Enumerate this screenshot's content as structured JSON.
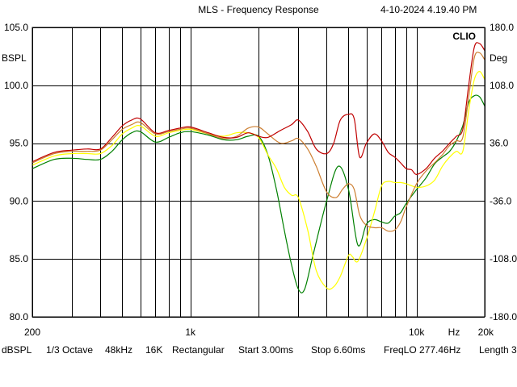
{
  "header": {
    "title": "MLS - Frequency Response",
    "timestamp": "4-10-2024 4.19.40 PM"
  },
  "chart_data": {
    "type": "line",
    "title": "MLS - Frequency Response",
    "brand": "CLIO",
    "x_scale": "log",
    "xlim": [
      200,
      20000
    ],
    "x_tick_values": [
      200,
      1000,
      10000,
      20000
    ],
    "x_tick_labels": [
      "200",
      "1k",
      "10k",
      "20k"
    ],
    "x_unit_label": "Hz",
    "x_gridlines": [
      200,
      300,
      400,
      500,
      600,
      700,
      800,
      900,
      1000,
      2000,
      3000,
      4000,
      5000,
      6000,
      7000,
      8000,
      9000,
      10000,
      20000
    ],
    "ylim": [
      80,
      105
    ],
    "y_tick_values": [
      80,
      85,
      90,
      95,
      100,
      105
    ],
    "y_tick_labels": [
      "80.0",
      "85.0",
      "90.0",
      "95.0",
      "100.0",
      "105.0"
    ],
    "ylabel": "BSPL",
    "y2lim": [
      -180,
      180
    ],
    "y2_tick_values": [
      -180,
      -108,
      -36,
      36,
      108,
      180
    ],
    "y2_tick_labels": [
      "-180.0",
      "-108.0",
      "-36.0",
      "36.0",
      "108.0",
      "180.0"
    ],
    "y2label": "Deg",
    "grid": true,
    "series": [
      {
        "color": "#008000",
        "x": [
          200,
          250,
          300,
          350,
          400,
          450,
          500,
          550,
          600,
          700,
          800,
          900,
          1000,
          1200,
          1400,
          1600,
          1800,
          2000,
          2200,
          2400,
          2600,
          2800,
          3000,
          3200,
          3500,
          4000,
          4500,
          5000,
          5500,
          6000,
          6500,
          7000,
          7500,
          8000,
          8500,
          9000,
          10000,
          11000,
          12000,
          13000,
          14000,
          15000,
          16000,
          17000,
          18000,
          19000,
          20000
        ],
        "y": [
          92.8,
          93.6,
          93.7,
          93.6,
          93.6,
          94.3,
          95.3,
          95.9,
          96.0,
          95.1,
          95.5,
          95.9,
          96.0,
          95.7,
          95.3,
          95.3,
          95.6,
          95.6,
          94.0,
          91.0,
          87.5,
          84.5,
          82.4,
          82.4,
          85.5,
          90.0,
          93.0,
          91.0,
          86.2,
          88.0,
          88.4,
          88.2,
          88.1,
          88.7,
          89.0,
          89.8,
          91.0,
          92.0,
          93.2,
          93.8,
          94.3,
          95.2,
          96.5,
          98.5,
          99.1,
          99.0,
          98.2
        ]
      },
      {
        "color": "#ffff00",
        "x": [
          200,
          250,
          300,
          350,
          400,
          450,
          500,
          550,
          600,
          700,
          800,
          900,
          1000,
          1200,
          1400,
          1600,
          1800,
          2000,
          2200,
          2400,
          2600,
          2800,
          3000,
          3300,
          3600,
          4000,
          4300,
          4600,
          5000,
          5200,
          5500,
          6000,
          6500,
          7000,
          7500,
          8000,
          8500,
          9000,
          10000,
          11000,
          12000,
          13000,
          14000,
          15000,
          16000,
          17000,
          18000,
          19000,
          20000
        ],
        "y": [
          93.1,
          93.9,
          94.1,
          94.1,
          94.1,
          94.8,
          95.8,
          96.3,
          96.5,
          95.6,
          95.9,
          96.1,
          96.2,
          95.8,
          95.6,
          95.9,
          95.9,
          95.5,
          94.0,
          92.8,
          91.2,
          90.5,
          90.3,
          87.5,
          84.0,
          82.5,
          82.6,
          83.5,
          85.3,
          85.2,
          84.8,
          86.7,
          89.0,
          91.3,
          91.7,
          91.6,
          91.6,
          91.5,
          91.2,
          91.3,
          91.8,
          93.0,
          93.8,
          94.3,
          94.3,
          97.8,
          100.5,
          101.2,
          100.5
        ]
      },
      {
        "color": "#cd7f32",
        "x": [
          200,
          250,
          300,
          350,
          400,
          450,
          500,
          550,
          600,
          700,
          800,
          900,
          1000,
          1200,
          1400,
          1600,
          1800,
          2000,
          2200,
          2500,
          2800,
          3000,
          3300,
          3600,
          4000,
          4400,
          4700,
          5000,
          5300,
          5600,
          6000,
          6500,
          7000,
          7500,
          8000,
          8500,
          9000,
          10000,
          11000,
          12000,
          13000,
          14000,
          15000,
          16000,
          17000,
          18000,
          19000,
          20000
        ],
        "y": [
          93.3,
          94.1,
          94.3,
          94.3,
          94.4,
          95.3,
          96.2,
          96.6,
          96.8,
          95.8,
          96.0,
          96.2,
          96.3,
          95.8,
          95.4,
          95.6,
          96.3,
          96.4,
          95.8,
          95.0,
          95.2,
          95.4,
          94.5,
          93.0,
          90.8,
          90.3,
          91.0,
          91.5,
          91.0,
          88.8,
          87.9,
          87.7,
          87.7,
          87.4,
          87.5,
          88.2,
          89.5,
          91.5,
          92.6,
          93.3,
          94.0,
          94.8,
          95.2,
          95.5,
          99.0,
          102.4,
          102.8,
          102.2
        ]
      },
      {
        "color": "#c00000",
        "x": [
          200,
          250,
          300,
          350,
          400,
          450,
          500,
          550,
          600,
          700,
          800,
          900,
          1000,
          1200,
          1400,
          1600,
          1800,
          2000,
          2200,
          2500,
          2800,
          3000,
          3300,
          3600,
          4000,
          4300,
          4600,
          5000,
          5300,
          5600,
          6000,
          6500,
          7000,
          7500,
          8000,
          8500,
          9000,
          9500,
          10000,
          11000,
          12000,
          13000,
          14000,
          15000,
          16000,
          17000,
          18000,
          19000,
          20000
        ],
        "y": [
          93.4,
          94.2,
          94.4,
          94.5,
          94.5,
          95.5,
          96.5,
          97.0,
          97.1,
          95.9,
          96.1,
          96.3,
          96.4,
          95.9,
          95.5,
          95.5,
          95.9,
          95.6,
          95.5,
          96.1,
          96.6,
          97.0,
          96.0,
          94.5,
          94.1,
          95.0,
          97.0,
          97.5,
          97.1,
          93.8,
          95.0,
          95.8,
          95.2,
          94.2,
          93.8,
          93.3,
          92.8,
          92.7,
          92.3,
          92.8,
          93.7,
          94.3,
          95.0,
          95.6,
          96.2,
          100.0,
          103.3,
          103.6,
          103.0
        ]
      }
    ]
  },
  "status_bar": {
    "items": [
      "dBSPL",
      "1/3 Octave",
      "48kHz",
      "16K",
      "Rectangular",
      "Start 3.00ms",
      "Stop 6.60ms",
      "FreqLO 277.46Hz",
      "Length 3"
    ]
  }
}
